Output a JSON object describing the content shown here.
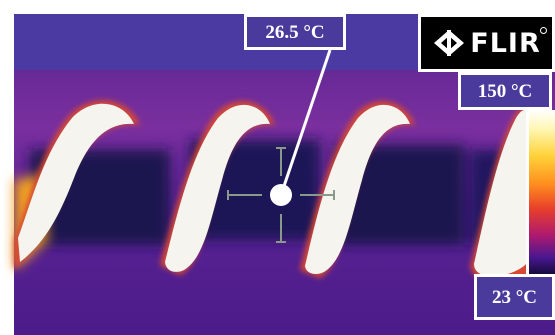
{
  "image": {
    "kind": "thermal-camera-image",
    "palette": "iron",
    "subject": "spiral coil heating element"
  },
  "overlay": {
    "spot_temperature": "26.5 °C",
    "scale_max": "150 °C",
    "scale_min": "23 °C"
  },
  "brand": {
    "logo_text": "FLIR",
    "logo_icon": "flir-diamond-logo-icon"
  },
  "colors": {
    "label_background": "#4a3a9c",
    "label_border": "#ffffff",
    "background_dark": "#2a1670",
    "coil_hot": "#f4f4f0"
  }
}
